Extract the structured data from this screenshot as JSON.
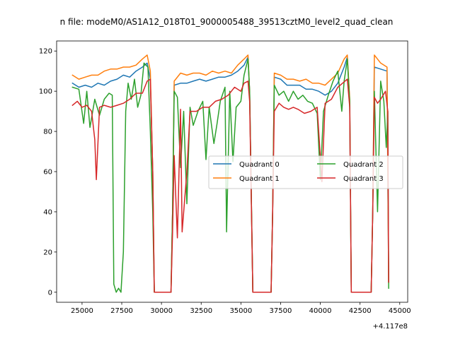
{
  "chart_data": {
    "type": "line",
    "title": "n file: modeM0/AS1A12_018T01_9000005488_39513cztM0_level2_quad_clean",
    "x_offset_label": "+4.117e8",
    "xlim": [
      23400,
      45500
    ],
    "ylim": [
      -5,
      125
    ],
    "x_ticks": [
      {
        "value": 25000,
        "label": "25000"
      },
      {
        "value": 27500,
        "label": "27500"
      },
      {
        "value": 30000,
        "label": "30000"
      },
      {
        "value": 32500,
        "label": "32500"
      },
      {
        "value": 35000,
        "label": "35000"
      },
      {
        "value": 37500,
        "label": "37500"
      },
      {
        "value": 40000,
        "label": "40000"
      },
      {
        "value": 42500,
        "label": "42500"
      },
      {
        "value": 45000,
        "label": "45000"
      }
    ],
    "y_ticks": [
      {
        "value": 0,
        "label": "0"
      },
      {
        "value": 20,
        "label": "20"
      },
      {
        "value": 40,
        "label": "40"
      },
      {
        "value": 60,
        "label": "60"
      },
      {
        "value": 80,
        "label": "80"
      },
      {
        "value": 100,
        "label": "100"
      },
      {
        "value": 120,
        "label": "120"
      }
    ],
    "grid": false,
    "legend": {
      "placement": "center-right",
      "columns": 2
    },
    "series": [
      {
        "name": "Quadrant 0",
        "color": "#1f77b4",
        "points": [
          [
            24400,
            104
          ],
          [
            24800,
            102
          ],
          [
            25200,
            103
          ],
          [
            25600,
            102
          ],
          [
            26000,
            104
          ],
          [
            26400,
            103
          ],
          [
            26800,
            105
          ],
          [
            27200,
            106
          ],
          [
            27600,
            108
          ],
          [
            28000,
            107
          ],
          [
            28400,
            110
          ],
          [
            28800,
            112
          ],
          [
            29100,
            114
          ],
          [
            29300,
            106
          ],
          [
            29450,
            60
          ],
          [
            29550,
            0
          ],
          [
            30600,
            0
          ],
          [
            30700,
            40
          ],
          [
            30800,
            103
          ],
          [
            31200,
            104
          ],
          [
            31600,
            104
          ],
          [
            32000,
            105
          ],
          [
            32400,
            106
          ],
          [
            32800,
            105
          ],
          [
            33200,
            106
          ],
          [
            33600,
            107
          ],
          [
            34000,
            107
          ],
          [
            34400,
            108
          ],
          [
            34800,
            110
          ],
          [
            35200,
            113
          ],
          [
            35450,
            117
          ],
          [
            35550,
            100
          ],
          [
            35750,
            0
          ],
          [
            36900,
            0
          ],
          [
            37000,
            40
          ],
          [
            37100,
            107
          ],
          [
            37500,
            106
          ],
          [
            37900,
            103
          ],
          [
            38300,
            103
          ],
          [
            38700,
            103
          ],
          [
            39100,
            101
          ],
          [
            39500,
            101
          ],
          [
            39900,
            100
          ],
          [
            40300,
            98
          ],
          [
            40700,
            100
          ],
          [
            41100,
            104
          ],
          [
            41500,
            112
          ],
          [
            41700,
            117
          ],
          [
            41850,
            95
          ],
          [
            41950,
            0
          ],
          [
            43200,
            0
          ],
          [
            43300,
            40
          ],
          [
            43400,
            112
          ],
          [
            43800,
            111
          ],
          [
            44200,
            110
          ],
          [
            44300,
            5
          ]
        ]
      },
      {
        "name": "Quadrant 1",
        "color": "#ff7f0e",
        "points": [
          [
            24400,
            108
          ],
          [
            24800,
            106
          ],
          [
            25200,
            107
          ],
          [
            25600,
            108
          ],
          [
            26000,
            108
          ],
          [
            26400,
            110
          ],
          [
            26800,
            111
          ],
          [
            27200,
            111
          ],
          [
            27600,
            112
          ],
          [
            28000,
            112
          ],
          [
            28400,
            113
          ],
          [
            28800,
            116
          ],
          [
            29100,
            118
          ],
          [
            29300,
            110
          ],
          [
            29450,
            60
          ],
          [
            29550,
            0
          ],
          [
            30600,
            0
          ],
          [
            30700,
            40
          ],
          [
            30800,
            105
          ],
          [
            31200,
            109
          ],
          [
            31600,
            108
          ],
          [
            32000,
            109
          ],
          [
            32400,
            109
          ],
          [
            32800,
            108
          ],
          [
            33200,
            110
          ],
          [
            33600,
            109
          ],
          [
            34000,
            110
          ],
          [
            34400,
            109
          ],
          [
            34800,
            113
          ],
          [
            35200,
            116
          ],
          [
            35450,
            118
          ],
          [
            35550,
            100
          ],
          [
            35750,
            0
          ],
          [
            36900,
            0
          ],
          [
            37000,
            40
          ],
          [
            37100,
            109
          ],
          [
            37500,
            108
          ],
          [
            37900,
            106
          ],
          [
            38300,
            106
          ],
          [
            38700,
            105
          ],
          [
            39100,
            106
          ],
          [
            39500,
            104
          ],
          [
            39900,
            104
          ],
          [
            40300,
            103
          ],
          [
            40700,
            106
          ],
          [
            41100,
            109
          ],
          [
            41500,
            116
          ],
          [
            41700,
            118
          ],
          [
            41850,
            96
          ],
          [
            41950,
            0
          ],
          [
            43200,
            0
          ],
          [
            43300,
            40
          ],
          [
            43400,
            118
          ],
          [
            43800,
            114
          ],
          [
            44200,
            112
          ],
          [
            44300,
            5
          ]
        ]
      },
      {
        "name": "Quadrant 2",
        "color": "#2ca02c",
        "points": [
          [
            24400,
            102
          ],
          [
            24800,
            101
          ],
          [
            25100,
            84
          ],
          [
            25300,
            100
          ],
          [
            25500,
            82
          ],
          [
            25800,
            96
          ],
          [
            26100,
            88
          ],
          [
            26400,
            96
          ],
          [
            26700,
            99
          ],
          [
            26900,
            98
          ],
          [
            27000,
            4
          ],
          [
            27150,
            0
          ],
          [
            27300,
            2
          ],
          [
            27450,
            0
          ],
          [
            27600,
            20
          ],
          [
            27750,
            90
          ],
          [
            27900,
            104
          ],
          [
            28100,
            96
          ],
          [
            28300,
            106
          ],
          [
            28500,
            92
          ],
          [
            28700,
            98
          ],
          [
            28900,
            114
          ],
          [
            29150,
            112
          ],
          [
            29300,
            80
          ],
          [
            29450,
            40
          ],
          [
            29550,
            0
          ],
          [
            30600,
            0
          ],
          [
            30700,
            40
          ],
          [
            30800,
            100
          ],
          [
            31000,
            97
          ],
          [
            31200,
            62
          ],
          [
            31400,
            90
          ],
          [
            31600,
            44
          ],
          [
            31800,
            92
          ],
          [
            32000,
            83
          ],
          [
            32300,
            90
          ],
          [
            32600,
            95
          ],
          [
            32800,
            66
          ],
          [
            33000,
            92
          ],
          [
            33300,
            74
          ],
          [
            33500,
            84
          ],
          [
            33700,
            95
          ],
          [
            34000,
            102
          ],
          [
            34100,
            30
          ],
          [
            34300,
            100
          ],
          [
            34500,
            65
          ],
          [
            34700,
            92
          ],
          [
            35000,
            95
          ],
          [
            35200,
            108
          ],
          [
            35450,
            116
          ],
          [
            35550,
            100
          ],
          [
            35750,
            0
          ],
          [
            36900,
            0
          ],
          [
            37000,
            40
          ],
          [
            37100,
            103
          ],
          [
            37400,
            98
          ],
          [
            37700,
            100
          ],
          [
            38000,
            95
          ],
          [
            38300,
            100
          ],
          [
            38600,
            96
          ],
          [
            38900,
            98
          ],
          [
            39200,
            95
          ],
          [
            39500,
            94
          ],
          [
            39800,
            89
          ],
          [
            40000,
            56
          ],
          [
            40200,
            90
          ],
          [
            40500,
            98
          ],
          [
            40800,
            105
          ],
          [
            41100,
            110
          ],
          [
            41350,
            90
          ],
          [
            41500,
            105
          ],
          [
            41700,
            116
          ],
          [
            41850,
            94
          ],
          [
            41950,
            0
          ],
          [
            43200,
            0
          ],
          [
            43300,
            40
          ],
          [
            43400,
            100
          ],
          [
            43600,
            40
          ],
          [
            43800,
            105
          ],
          [
            44000,
            95
          ],
          [
            44150,
            72
          ],
          [
            44250,
            90
          ],
          [
            44300,
            2
          ]
        ]
      },
      {
        "name": "Quadrant 3",
        "color": "#d62728",
        "points": [
          [
            24400,
            93
          ],
          [
            24700,
            95
          ],
          [
            25000,
            92
          ],
          [
            25300,
            93
          ],
          [
            25600,
            90
          ],
          [
            25800,
            76
          ],
          [
            25900,
            56
          ],
          [
            26100,
            92
          ],
          [
            26400,
            93
          ],
          [
            26800,
            92
          ],
          [
            27200,
            93
          ],
          [
            27600,
            94
          ],
          [
            28000,
            96
          ],
          [
            28400,
            99
          ],
          [
            28800,
            99
          ],
          [
            29100,
            105
          ],
          [
            29300,
            106
          ],
          [
            29450,
            60
          ],
          [
            29550,
            0
          ],
          [
            30600,
            0
          ],
          [
            30700,
            30
          ],
          [
            30800,
            68
          ],
          [
            31000,
            27
          ],
          [
            31200,
            91
          ],
          [
            31300,
            30
          ],
          [
            31600,
            60
          ],
          [
            31800,
            90
          ],
          [
            32200,
            90
          ],
          [
            32600,
            92
          ],
          [
            33000,
            92
          ],
          [
            33400,
            95
          ],
          [
            33800,
            96
          ],
          [
            34200,
            98
          ],
          [
            34600,
            102
          ],
          [
            35000,
            100
          ],
          [
            35200,
            104
          ],
          [
            35450,
            105
          ],
          [
            35550,
            95
          ],
          [
            35750,
            0
          ],
          [
            36900,
            0
          ],
          [
            37000,
            40
          ],
          [
            37100,
            90
          ],
          [
            37400,
            94
          ],
          [
            37700,
            92
          ],
          [
            38000,
            91
          ],
          [
            38300,
            92
          ],
          [
            38600,
            91
          ],
          [
            39000,
            89
          ],
          [
            39400,
            90
          ],
          [
            39800,
            92
          ],
          [
            40100,
            55
          ],
          [
            40300,
            94
          ],
          [
            40700,
            96
          ],
          [
            41100,
            102
          ],
          [
            41400,
            104
          ],
          [
            41700,
            106
          ],
          [
            41850,
            92
          ],
          [
            41950,
            0
          ],
          [
            43200,
            0
          ],
          [
            43300,
            40
          ],
          [
            43400,
            97
          ],
          [
            43600,
            94
          ],
          [
            43800,
            96
          ],
          [
            44100,
            100
          ],
          [
            44250,
            90
          ],
          [
            44300,
            5
          ]
        ]
      }
    ]
  }
}
